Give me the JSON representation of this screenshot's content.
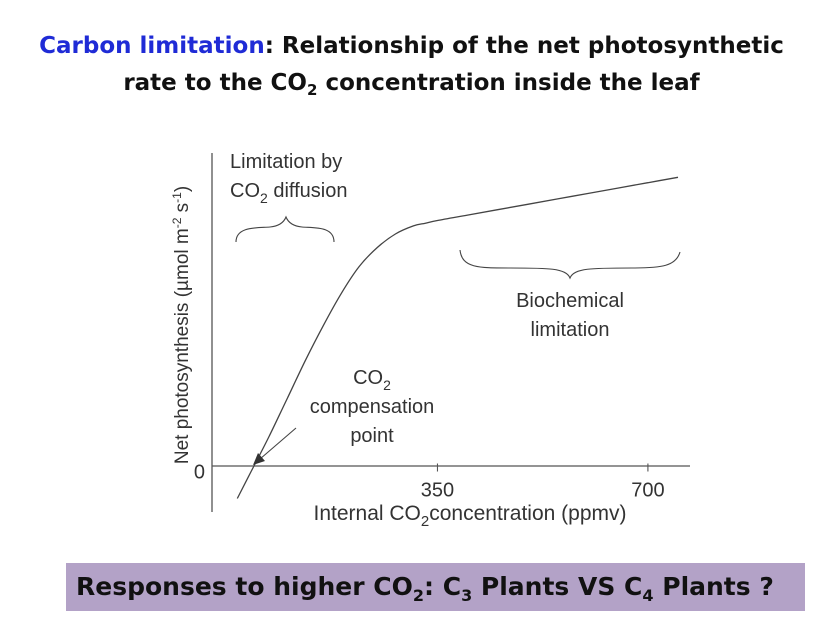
{
  "title": {
    "lead": "Carbon limitation",
    "sep": ":",
    "part1": " Relationship of the net photosynthetic",
    "part2a": "rate to the CO",
    "part2sub": "2",
    "part2b": " concentration inside the leaf"
  },
  "chart_data": {
    "type": "line",
    "ylabel": "Net photosynthesis (µmol m⁻² s⁻¹)",
    "ylabel_parts": {
      "main": "Net photosynthesis (µmol m",
      "sup1": "-2",
      "mid": " s",
      "sup2": "-1",
      "end": ")"
    },
    "xlabel_parts": {
      "pre": "Internal CO",
      "sub": "2",
      "post": "concentration (ppmv)"
    },
    "y_ticks": [
      {
        "value": 0,
        "label": "0"
      }
    ],
    "x_ticks": [
      {
        "value": 350,
        "label": "350"
      },
      {
        "value": 700,
        "label": "700"
      }
    ],
    "xlim": [
      -25,
      770
    ],
    "ylim": [
      -0.15,
      1.18
    ],
    "grid": false,
    "series": [
      {
        "x": [
          17,
          40,
          70,
          100,
          130,
          160,
          190,
          220,
          250,
          280,
          310,
          330,
          350,
          400,
          450,
          500,
          550,
          600,
          650,
          700,
          750
        ],
        "y": [
          -0.1,
          0.0,
          0.13,
          0.27,
          0.41,
          0.54,
          0.66,
          0.76,
          0.83,
          0.88,
          0.91,
          0.92,
          0.93,
          0.95,
          0.97,
          0.99,
          1.01,
          1.03,
          1.05,
          1.07,
          1.09
        ]
      }
    ],
    "annotations": {
      "diffusion": {
        "line1": "Limitation by",
        "line2_pre": "CO",
        "line2_sub": "2",
        "line2_post": " diffusion"
      },
      "biochemical": {
        "line1": "Biochemical",
        "line2": "limitation"
      },
      "compensation": {
        "line1_pre": "CO",
        "line1_sub": "2",
        "line2": "compensation",
        "line3": "point"
      }
    }
  },
  "banner": {
    "a": "Responses to higher CO",
    "a_sub": "2",
    "b": ": C",
    "b_sub": "3",
    "c": " Plants VS C",
    "c_sub": "4",
    "d": " Plants ?"
  }
}
